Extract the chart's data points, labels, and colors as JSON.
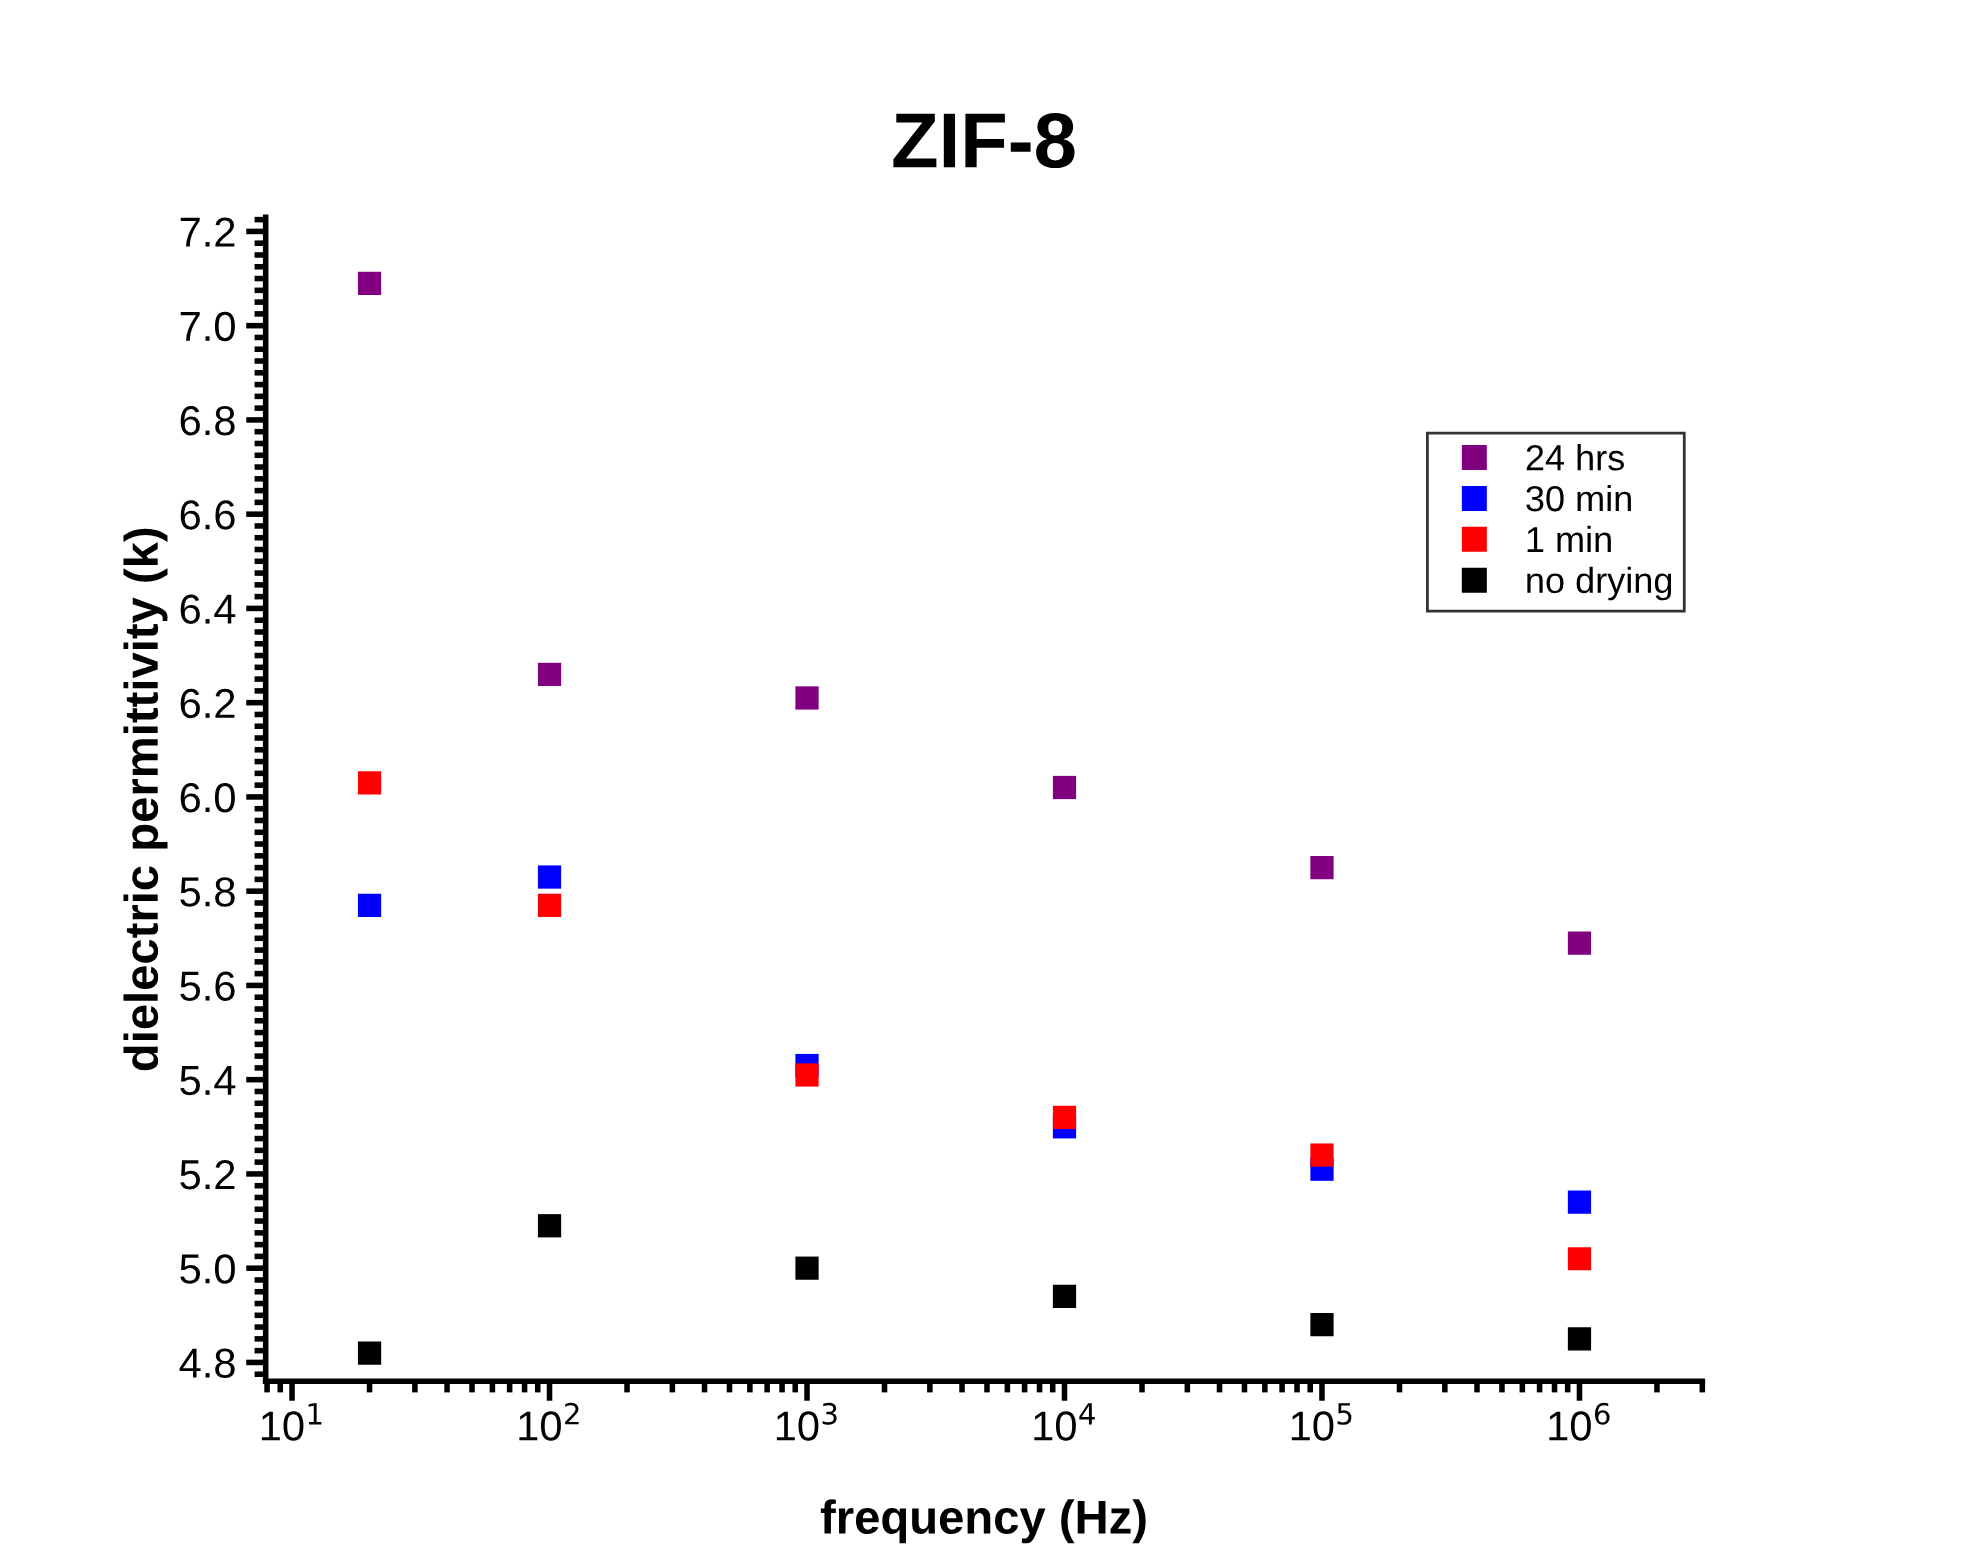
{
  "chart_data": {
    "type": "scatter",
    "title": "ZIF-8",
    "xlabel": "frequency (Hz)",
    "ylabel": "dielectric permittivity (k)",
    "log": "x",
    "marker": "square",
    "legend": "top right",
    "grid": false,
    "xlim": [
      7.9,
      3000000
    ],
    "xticks": [
      {
        "value": 10,
        "label": "10$^{1}$"
      },
      {
        "value": 100,
        "label": "10$^{2}$"
      },
      {
        "value": 1000,
        "label": "10$^{3}$"
      },
      {
        "value": 10000,
        "label": "10$^{4}$"
      },
      {
        "value": 100000,
        "label": "10$^{5}$"
      },
      {
        "value": 1000000,
        "label": "10$^{6}$"
      }
    ],
    "ylim": [
      4.76,
      7.23
    ],
    "yticks": [
      {
        "value": 4.8,
        "label": "4.8"
      },
      {
        "value": 5.0,
        "label": "5.0"
      },
      {
        "value": 5.2,
        "label": "5.2"
      },
      {
        "value": 5.4,
        "label": "5.4"
      },
      {
        "value": 5.6,
        "label": "5.6"
      },
      {
        "value": 5.8,
        "label": "5.8"
      },
      {
        "value": 6.0,
        "label": "6.0"
      },
      {
        "value": 6.2,
        "label": "6.2"
      },
      {
        "value": 6.4,
        "label": "6.4"
      },
      {
        "value": 6.6,
        "label": "6.6"
      },
      {
        "value": 6.8,
        "label": "6.8"
      },
      {
        "value": 7.0,
        "label": "7.0"
      },
      {
        "value": 7.2,
        "label": "7.2"
      }
    ],
    "x": [
      20,
      100,
      1000,
      10000,
      100000,
      1000000
    ],
    "series": [
      {
        "name": "24 hrs",
        "color": "#800080",
        "values": [
          7.09,
          6.26,
          6.21,
          6.02,
          5.85,
          5.69
        ]
      },
      {
        "name": "30 min",
        "color": "#0000ff",
        "values": [
          5.77,
          5.83,
          5.43,
          5.3,
          5.21,
          5.14
        ]
      },
      {
        "name": "1 min",
        "color": "#ff0000",
        "values": [
          6.03,
          5.77,
          5.41,
          5.32,
          5.24,
          5.02
        ]
      },
      {
        "name": "no drying",
        "color": "#000000",
        "values": [
          4.82,
          5.09,
          5.0,
          4.94,
          4.88,
          4.85
        ]
      }
    ]
  }
}
